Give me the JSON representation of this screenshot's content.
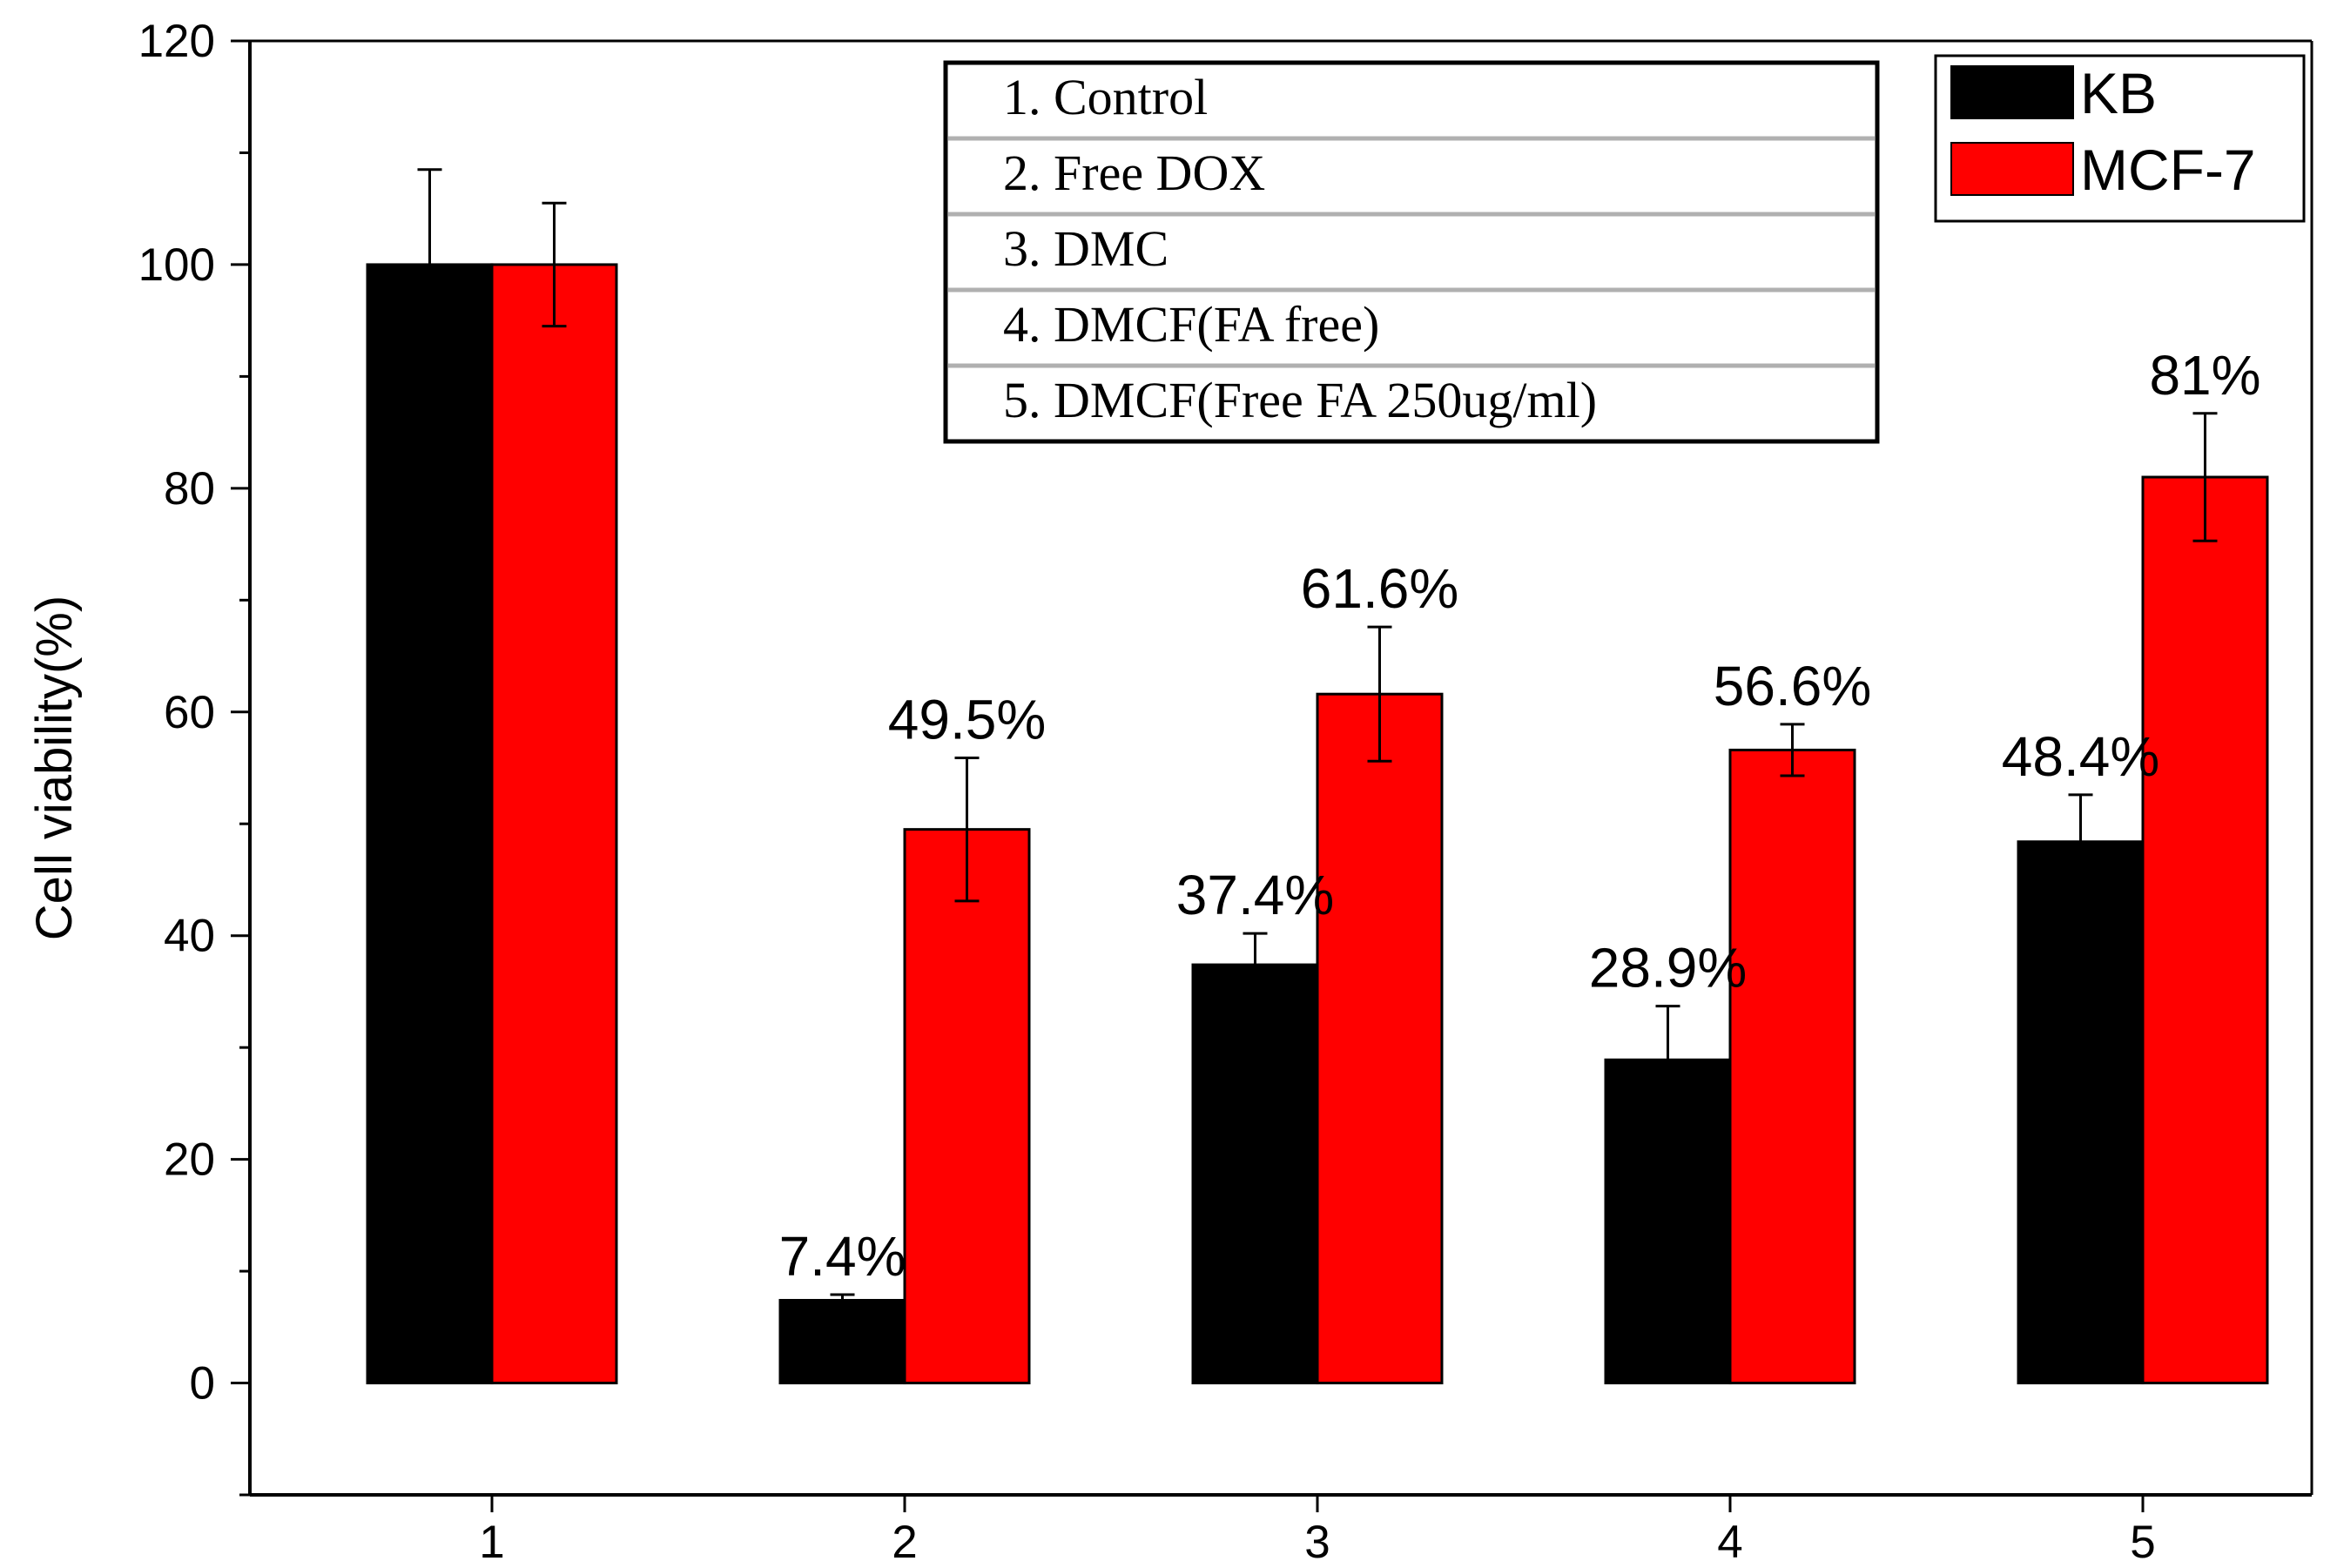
{
  "chart_data": {
    "type": "bar",
    "title": "",
    "xlabel": "",
    "ylabel": "Cell viability(%)",
    "ylim": [
      -10,
      120
    ],
    "yticks": [
      0,
      20,
      40,
      60,
      80,
      100,
      120
    ],
    "categories": [
      "1",
      "2",
      "3",
      "4",
      "5"
    ],
    "series": [
      {
        "name": "KB",
        "color": "#000000",
        "values": [
          100,
          7.4,
          37.4,
          28.9,
          48.4
        ],
        "errors": [
          8.5,
          0.5,
          2.8,
          4.8,
          4.2
        ],
        "labels": [
          "",
          "7.4%",
          "37.4%",
          "28.9%",
          "48.4%"
        ]
      },
      {
        "name": "MCF-7",
        "color": "#ff0000",
        "values": [
          100,
          49.5,
          61.6,
          56.6,
          81
        ],
        "errors": [
          5.5,
          6.4,
          6.0,
          2.3,
          5.7
        ],
        "labels": [
          "",
          "49.5%",
          "61.6%",
          "56.6%",
          "81%"
        ]
      }
    ],
    "grid": false,
    "legend_position": "top-right",
    "annotation_box": {
      "items": [
        "1. Control",
        "2. Free DOX",
        "3. DMC",
        "4. DMCF(FA free)",
        "5. DMCF(Free FA 250ug/ml)"
      ]
    }
  }
}
